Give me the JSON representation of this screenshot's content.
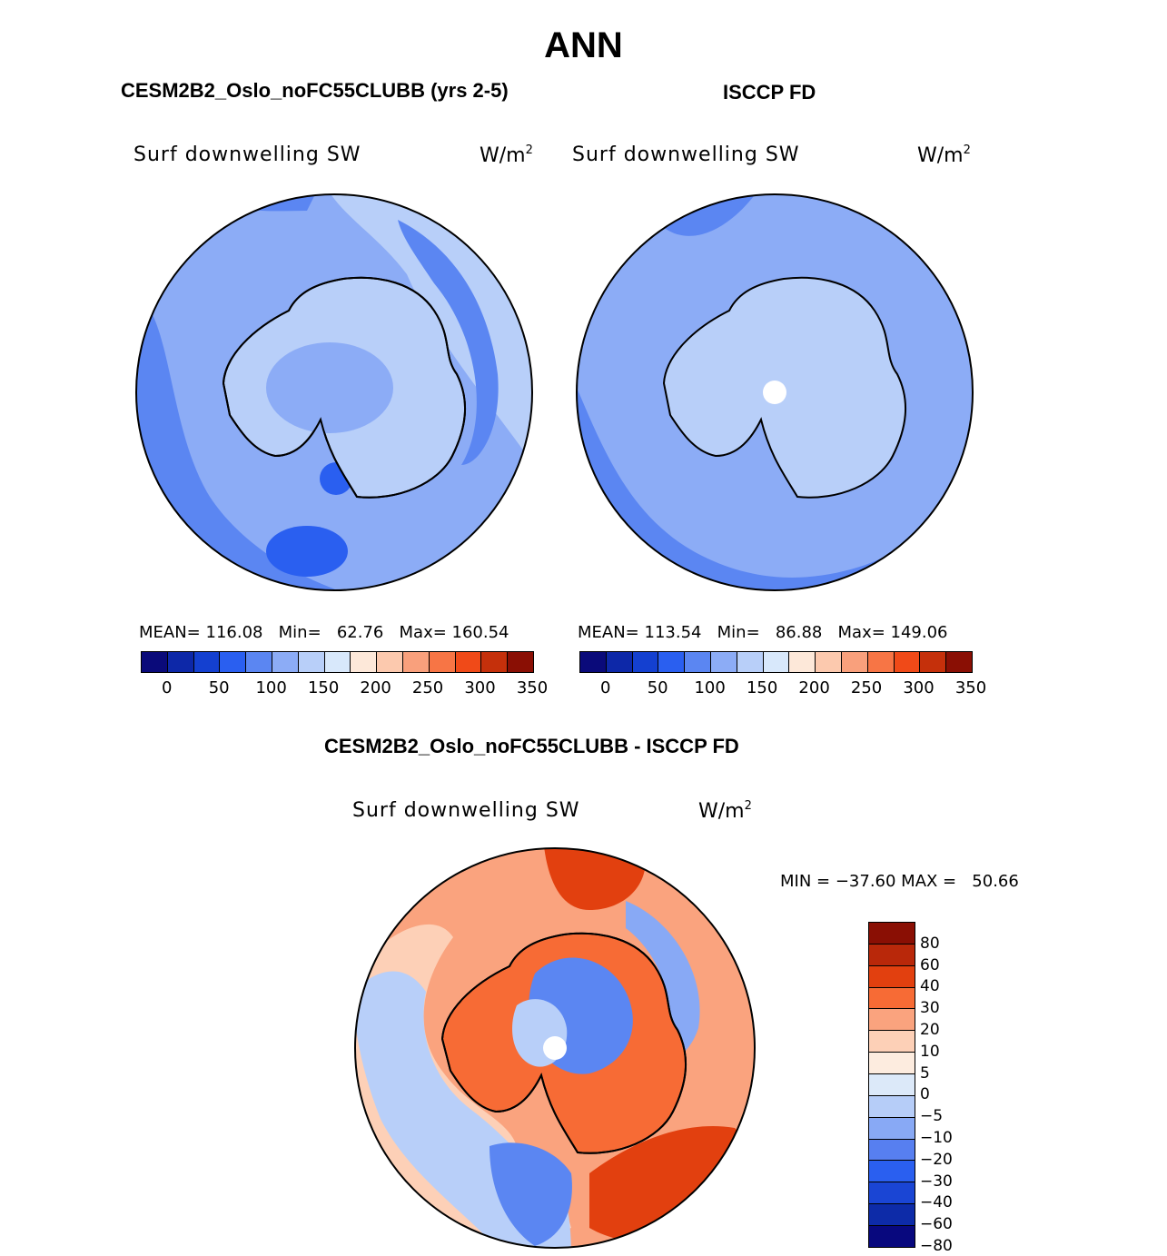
{
  "season": "ANN",
  "panels": {
    "model": {
      "title": "CESM2B2_Oslo_noFC55CLUBB (yrs 2-5)",
      "variable": "Surf downwelling SW",
      "units": "W/m",
      "units_exp": "2",
      "stats": "MEAN= 116.08   Min=   62.76   Max= 160.54"
    },
    "obs": {
      "title": "ISCCP FD",
      "variable": "Surf downwelling SW",
      "units": "W/m",
      "units_exp": "2",
      "stats": "MEAN= 113.54   Min=   86.88   Max= 149.06"
    },
    "diff": {
      "title": "CESM2B2_Oslo_noFC55CLUBB - ISCCP FD",
      "variable": "Surf downwelling SW",
      "units": "W/m",
      "units_exp": "2",
      "stats": "MIN = −37.60 MAX =   50.66"
    }
  },
  "colorbar_abs": {
    "colors": [
      "#0a0a7a",
      "#0d28a8",
      "#1440d0",
      "#2a5ff0",
      "#5b86f2",
      "#8cacf6",
      "#b8cff9",
      "#d8e8fb",
      "#fde8d9",
      "#fcc9ae",
      "#f9a07c",
      "#f77545",
      "#f04a18",
      "#c5300b",
      "#8a0f04"
    ],
    "ticks": [
      "0",
      "50",
      "100",
      "150",
      "200",
      "250",
      "300",
      "350"
    ]
  },
  "colorbar_diff": {
    "colors": [
      "#8a0f04",
      "#b9280a",
      "#e2400f",
      "#f76b35",
      "#faa37e",
      "#fdd0b7",
      "#fdecdf",
      "#dce9f9",
      "#b6cdf8",
      "#88a9f5",
      "#577ff0",
      "#2a5ff0",
      "#1a45d4",
      "#0d2ba8",
      "#08087e"
    ],
    "ticks": [
      "80",
      "60",
      "40",
      "30",
      "20",
      "10",
      "5",
      "0",
      "−5",
      "−10",
      "−20",
      "−30",
      "−40",
      "−60",
      "−80"
    ]
  },
  "map_colors": {
    "blue_light": "#b8cff9",
    "blue_mid": "#8cacf6",
    "blue_medium": "#5b86f2",
    "blue_dark": "#2a5ff0",
    "red_light": "#fdd0b7",
    "red_mid": "#faa37e",
    "red_medium": "#f76b35",
    "red_dark": "#e2400f",
    "white": "#ffffff",
    "coast": "#000000"
  }
}
